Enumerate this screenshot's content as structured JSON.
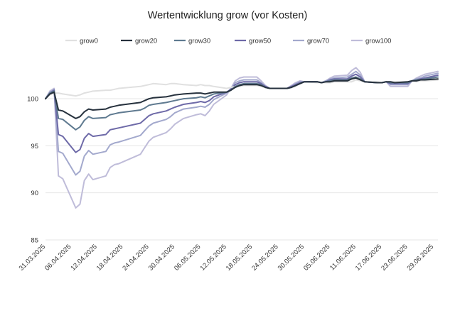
{
  "chart_data": {
    "type": "line",
    "title": "Wertentwicklung grow (vor Kosten)",
    "xlabel": "",
    "ylabel": "",
    "ylim": [
      85,
      104
    ],
    "yticks": [
      85,
      90,
      95,
      100
    ],
    "legend_position": "top",
    "grid": "horizontal",
    "x_start": "31.03.2025",
    "x_end": "30.06.2025",
    "xtick_labels": [
      "31.03.2025",
      "06.04.2025",
      "12.04.2025",
      "18.04.2025",
      "24.04.2025",
      "30.04.2025",
      "06.05.2025",
      "12.05.2025",
      "18.05.2025",
      "24.05.2025",
      "30.05.2025",
      "05.06.2025",
      "11.06.2025",
      "17.06.2025",
      "23.06.2025",
      "29.06.2025"
    ],
    "x": [
      "31.03.2025",
      "01.04.2025",
      "02.04.2025",
      "03.04.2025",
      "04.04.2025",
      "07.04.2025",
      "08.04.2025",
      "09.04.2025",
      "10.04.2025",
      "11.04.2025",
      "14.04.2025",
      "15.04.2025",
      "16.04.2025",
      "17.04.2025",
      "22.04.2025",
      "23.04.2025",
      "24.04.2025",
      "25.04.2025",
      "28.04.2025",
      "29.04.2025",
      "30.04.2025",
      "02.05.2025",
      "05.05.2025",
      "06.05.2025",
      "07.05.2025",
      "08.05.2025",
      "09.05.2025",
      "12.05.2025",
      "13.05.2025",
      "14.05.2025",
      "15.05.2025",
      "16.05.2025",
      "19.05.2025",
      "20.05.2025",
      "21.05.2025",
      "22.05.2025",
      "23.05.2025",
      "26.05.2025",
      "27.05.2025",
      "28.05.2025",
      "29.05.2025",
      "30.05.2025",
      "02.06.2025",
      "03.06.2025",
      "04.06.2025",
      "05.06.2025",
      "06.06.2025",
      "09.06.2025",
      "10.06.2025",
      "11.06.2025",
      "12.06.2025",
      "13.06.2025",
      "16.06.2025",
      "17.06.2025",
      "18.06.2025",
      "19.06.2025",
      "20.06.2025",
      "23.06.2025",
      "24.06.2025",
      "25.06.2025",
      "26.06.2025",
      "27.06.2025",
      "30.06.2025"
    ],
    "series": [
      {
        "name": "grow0",
        "color": "#e0e0e0",
        "values": [
          100.0,
          100.4,
          100.6,
          100.6,
          100.5,
          100.3,
          100.4,
          100.6,
          100.7,
          100.8,
          100.9,
          100.9,
          101.0,
          101.1,
          101.3,
          101.4,
          101.5,
          101.6,
          101.5,
          101.6,
          101.6,
          101.5,
          101.4,
          101.5,
          101.4,
          101.4,
          101.3,
          101.1,
          101.2,
          101.3,
          101.3,
          101.4,
          101.4,
          101.3,
          101.2,
          101.1,
          101.1,
          101.1,
          101.2,
          101.3,
          101.6,
          101.8,
          101.7,
          101.7,
          101.7,
          101.7,
          101.8,
          101.8,
          101.8,
          102.0,
          101.9,
          101.8,
          101.8,
          101.7,
          101.8,
          101.8,
          101.8,
          101.8,
          101.9,
          101.8,
          101.9,
          101.9,
          102.0
        ]
      },
      {
        "name": "grow20",
        "color": "#26313d",
        "values": [
          100.0,
          100.5,
          100.7,
          98.8,
          98.7,
          97.9,
          98.1,
          98.6,
          98.9,
          98.8,
          98.9,
          99.1,
          99.2,
          99.3,
          99.6,
          99.8,
          100.0,
          100.1,
          100.2,
          100.3,
          100.4,
          100.5,
          100.6,
          100.6,
          100.5,
          100.6,
          100.7,
          100.7,
          100.9,
          101.2,
          101.4,
          101.5,
          101.5,
          101.4,
          101.2,
          101.1,
          101.1,
          101.1,
          101.2,
          101.4,
          101.6,
          101.8,
          101.8,
          101.7,
          101.8,
          101.8,
          101.9,
          101.9,
          102.1,
          102.2,
          102.0,
          101.8,
          101.7,
          101.7,
          101.8,
          101.8,
          101.7,
          101.8,
          101.9,
          101.9,
          102.0,
          102.0,
          102.1
        ]
      },
      {
        "name": "grow30",
        "color": "#5f7a90",
        "values": [
          100.0,
          100.6,
          100.8,
          97.9,
          97.8,
          96.7,
          97.0,
          97.7,
          98.1,
          97.9,
          98.0,
          98.3,
          98.4,
          98.5,
          98.8,
          99.0,
          99.3,
          99.4,
          99.6,
          99.7,
          99.8,
          100.0,
          100.1,
          100.2,
          100.1,
          100.3,
          100.5,
          100.7,
          100.9,
          101.3,
          101.5,
          101.6,
          101.6,
          101.5,
          101.2,
          101.1,
          101.1,
          101.1,
          101.2,
          101.4,
          101.6,
          101.8,
          101.8,
          101.7,
          101.8,
          101.9,
          102.0,
          102.0,
          102.2,
          102.3,
          102.1,
          101.8,
          101.7,
          101.7,
          101.8,
          101.7,
          101.7,
          101.7,
          101.9,
          102.0,
          102.0,
          102.1,
          102.3
        ]
      },
      {
        "name": "grow50",
        "color": "#6e6aa8",
        "values": [
          100.0,
          100.6,
          100.9,
          96.2,
          96.0,
          94.3,
          94.6,
          95.8,
          96.3,
          96.0,
          96.2,
          96.7,
          96.8,
          96.9,
          97.4,
          97.8,
          98.2,
          98.4,
          98.7,
          98.9,
          99.1,
          99.4,
          99.6,
          99.7,
          99.6,
          99.8,
          100.2,
          100.7,
          101.0,
          101.5,
          101.7,
          101.8,
          101.8,
          101.6,
          101.3,
          101.1,
          101.1,
          101.1,
          101.3,
          101.5,
          101.7,
          101.8,
          101.8,
          101.7,
          101.8,
          102.0,
          102.1,
          102.1,
          102.4,
          102.6,
          102.3,
          101.8,
          101.7,
          101.7,
          101.8,
          101.6,
          101.6,
          101.6,
          101.9,
          102.0,
          102.1,
          102.2,
          102.5
        ]
      },
      {
        "name": "grow70",
        "color": "#a3a9cd",
        "values": [
          100.0,
          100.7,
          101.0,
          94.4,
          94.2,
          91.9,
          92.3,
          93.9,
          94.5,
          94.1,
          94.4,
          95.1,
          95.3,
          95.4,
          96.1,
          96.6,
          97.1,
          97.4,
          97.8,
          98.1,
          98.5,
          98.9,
          99.1,
          99.2,
          99.1,
          99.4,
          99.9,
          100.6,
          101.1,
          101.7,
          101.9,
          102.0,
          102.0,
          101.7,
          101.3,
          101.1,
          101.1,
          101.1,
          101.3,
          101.6,
          101.8,
          101.8,
          101.8,
          101.7,
          101.9,
          102.1,
          102.2,
          102.3,
          102.6,
          102.9,
          102.5,
          101.8,
          101.7,
          101.7,
          101.8,
          101.5,
          101.5,
          101.5,
          101.9,
          102.1,
          102.2,
          102.4,
          102.7
        ]
      },
      {
        "name": "grow100",
        "color": "#bfbcd9",
        "values": [
          100.0,
          100.8,
          101.1,
          91.8,
          91.5,
          88.4,
          88.8,
          91.3,
          92.0,
          91.4,
          91.8,
          92.7,
          93.0,
          93.1,
          94.1,
          94.8,
          95.5,
          95.9,
          96.4,
          96.8,
          97.3,
          97.9,
          98.3,
          98.4,
          98.2,
          98.7,
          99.4,
          100.4,
          101.1,
          101.9,
          102.2,
          102.3,
          102.3,
          101.9,
          101.4,
          101.1,
          101.1,
          101.1,
          101.4,
          101.7,
          101.9,
          101.8,
          101.8,
          101.7,
          101.9,
          102.2,
          102.4,
          102.5,
          103.0,
          103.3,
          102.8,
          101.8,
          101.7,
          101.7,
          101.8,
          101.3,
          101.3,
          101.3,
          101.9,
          102.2,
          102.4,
          102.6,
          102.9
        ]
      }
    ]
  }
}
